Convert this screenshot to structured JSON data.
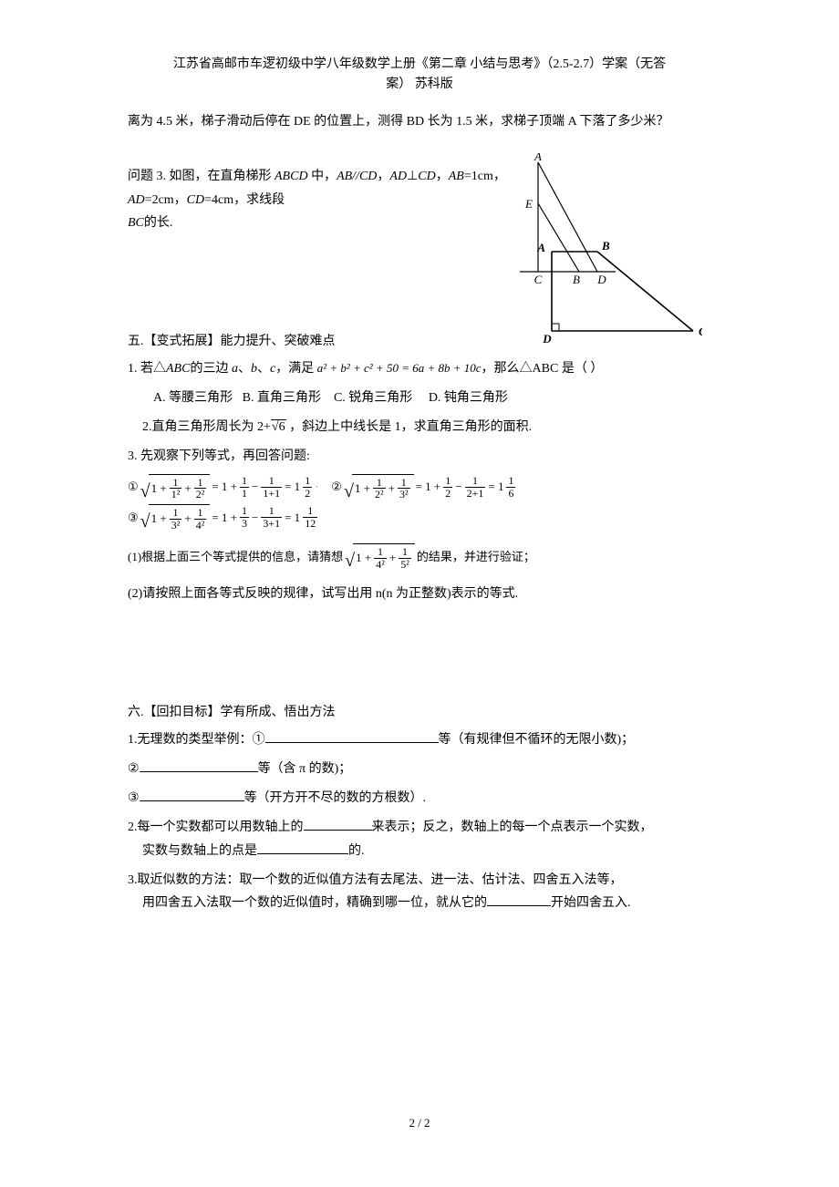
{
  "header": {
    "line1": "江苏省高邮市车逻初级中学八年级数学上册《第二章 小结与思考》（2.5-2.7）学案（无答",
    "line2": "案）  苏科版"
  },
  "p_lead": "离为 4.5 米，梯子滑动后停在 DE 的位置上，测得 BD 长为 1.5 米，求梯子顶端 A 下落了多少米？",
  "q3_prefix": "问题 3.  如图，在直角梯形 ",
  "q3_abcd": "ABCD",
  "q3_mid1": " 中，",
  "q3_ab": "AB",
  "q3_par": "//",
  "q3_cd": "CD",
  "q3_mid2": "，",
  "q3_ad": "AD",
  "q3_perp": "⊥",
  "q3_mid3": "，",
  "q3_ab2": "AB",
  "q3_eq1": "=1cm，",
  "q3_ad2": "AD",
  "q3_eq2": "=2cm，",
  "q3_cd2": "CD",
  "q3_eq3": "=4cm，求线段 ",
  "q3_bc": "BC",
  "q3_tail": "的长.",
  "sec5": "五.【变式拓展】能力提升、突破难点",
  "q1_prefix": "1.  若△",
  "q1_abc": "ABC",
  "q1_mid": "的三边 ",
  "q1_a": "a",
  "q1_sep1": "、",
  "q1_b": "b",
  "q1_sep2": "、",
  "q1_c": "c",
  "q1_mid2": "，满足 ",
  "q1_expr": "a² + b² + c² + 50 = 6a + 8b + 10c",
  "q1_tail": "，那么△ABC 是（          ）",
  "optA": "A. 等腰三角形",
  "optB": "B. 直角三角形",
  "optC": "C. 锐角三角形",
  "optD": "D. 钝角三角形",
  "q2_prefix": "2.直角三角形周长为 2+",
  "q2_sqrt": "√6",
  "q2_tail": " ，斜边上中线长是 1，求直角三角形的面积.",
  "q3b": "3.  先观察下列等式，再回答问题:",
  "sub1_prefix": "(1)根据上面三个等式提供的信息，请猜想 ",
  "sub1_tail": " 的结果，并进行验证；",
  "sub2": "(2)请按照上面各等式反映的规律，试写出用 n(n 为正整数)表示的等式.",
  "sec6": "六.【回扣目标】学有所成、悟出方法",
  "r1_a": "1.无理数的类型举例：①",
  "r1_b": "等（有规律但不循环的无限小数)；",
  "r2_a": "②",
  "r2_b": "等（含 π 的数)；",
  "r3_a": "③",
  "r3_b": "等（开方开不尽的数的方根数）.",
  "r4_a": "2.每一个实数都可以用数轴上的",
  "r4_b": "来表示；反之，数轴上的每一个点表示一个实数，",
  "r4_c": "实数与数轴上的点是",
  "r4_d": "的.",
  "r5_a": "3.取近似数的方法：取一个数的近似值方法有去尾法、进一法、估计法、四舍五入法等，",
  "r5_b": "用四舍五入法取一个数的近似值时，精确到哪一位，就从它的",
  "r5_c": "开始四舍五入.",
  "footer": "2 / 2",
  "fig": {
    "A_big": "A",
    "E": "E",
    "C_small": "C",
    "B_small": "B",
    "D_small": "D",
    "A_bold": "A",
    "B_bold": "B",
    "D_bold": "D",
    "C_bold": "C"
  },
  "blanks": {
    "w1": 190,
    "w2": 130,
    "w3": 115,
    "w4": 75,
    "w5": 100,
    "w6": 70
  }
}
